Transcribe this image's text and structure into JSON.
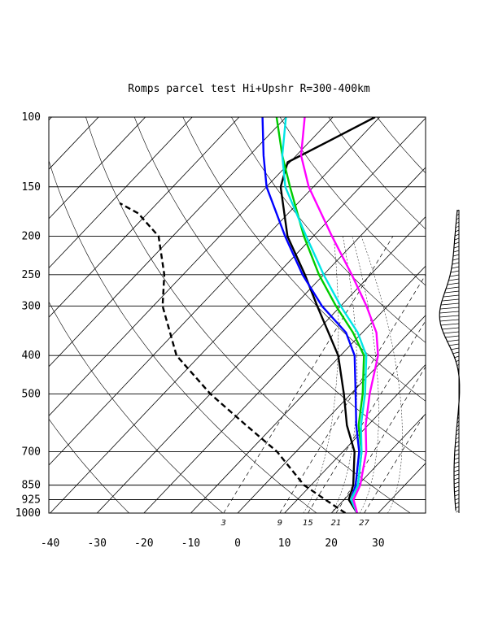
{
  "chart_data": {
    "type": "line",
    "title": "Romps parcel test Hi+Upshr R=300-400km",
    "pressure_ticks": [
      100,
      150,
      200,
      250,
      300,
      400,
      500,
      700,
      850,
      925,
      1000
    ],
    "temperature_ticks": [
      -40,
      -30,
      -20,
      -10,
      0,
      10,
      20,
      30
    ],
    "mixing_ratio_labels": [
      "3",
      "9",
      "15",
      "21",
      "27"
    ],
    "y_axis_scale": "log-pressure (hPa), inverted",
    "x_axis": "temperature (C), skewed",
    "grid": true,
    "series": [
      {
        "color": "#000000",
        "style": "solid",
        "points": [
          [
            1000,
            25.5
          ],
          [
            925,
            21
          ],
          [
            850,
            19
          ],
          [
            700,
            12.5
          ],
          [
            600,
            5.5
          ],
          [
            500,
            -1.5
          ],
          [
            400,
            -10.5
          ],
          [
            300,
            -25
          ],
          [
            250,
            -34
          ],
          [
            200,
            -45.5
          ],
          [
            150,
            -57
          ],
          [
            130,
            -60.5
          ],
          [
            115,
            -56
          ],
          [
            100,
            -51
          ]
        ]
      },
      {
        "color": "#000000",
        "style": "dashed",
        "points": [
          [
            1000,
            23
          ],
          [
            925,
            16
          ],
          [
            850,
            8.5
          ],
          [
            700,
            -4
          ],
          [
            600,
            -16
          ],
          [
            500,
            -30
          ],
          [
            400,
            -45
          ],
          [
            300,
            -58
          ],
          [
            250,
            -64
          ],
          [
            200,
            -73
          ],
          [
            175,
            -82
          ],
          [
            165,
            -88
          ]
        ]
      },
      {
        "color": "#0000ff",
        "style": "solid",
        "points": [
          [
            1000,
            25.5
          ],
          [
            925,
            21.5
          ],
          [
            850,
            19.5
          ],
          [
            700,
            13.5
          ],
          [
            600,
            7.5
          ],
          [
            500,
            1
          ],
          [
            400,
            -7
          ],
          [
            350,
            -13.5
          ],
          [
            300,
            -24
          ],
          [
            250,
            -34.5
          ],
          [
            200,
            -46
          ],
          [
            150,
            -60
          ],
          [
            125,
            -67
          ],
          [
            100,
            -75
          ]
        ]
      },
      {
        "color": "#00cc00",
        "style": "solid",
        "points": [
          [
            1000,
            25.5
          ],
          [
            925,
            21.5
          ],
          [
            850,
            20
          ],
          [
            700,
            14
          ],
          [
            600,
            8
          ],
          [
            500,
            2.5
          ],
          [
            400,
            -5
          ],
          [
            350,
            -12
          ],
          [
            300,
            -21
          ],
          [
            250,
            -31
          ],
          [
            200,
            -42
          ],
          [
            150,
            -55
          ],
          [
            125,
            -63
          ],
          [
            100,
            -72
          ]
        ]
      },
      {
        "color": "#00e5e5",
        "style": "solid",
        "points": [
          [
            1000,
            25.5
          ],
          [
            925,
            21.5
          ],
          [
            850,
            20
          ],
          [
            700,
            14
          ],
          [
            600,
            8.5
          ],
          [
            500,
            3
          ],
          [
            400,
            -4.5
          ],
          [
            350,
            -11
          ],
          [
            300,
            -20
          ],
          [
            250,
            -30
          ],
          [
            200,
            -41.5
          ],
          [
            150,
            -56
          ],
          [
            125,
            -63
          ],
          [
            100,
            -70
          ]
        ]
      },
      {
        "color": "#ff00ff",
        "style": "solid",
        "points": [
          [
            1000,
            25.5
          ],
          [
            925,
            22
          ],
          [
            850,
            20.5
          ],
          [
            700,
            15
          ],
          [
            600,
            9.5
          ],
          [
            500,
            4
          ],
          [
            400,
            -2
          ],
          [
            350,
            -7
          ],
          [
            300,
            -14.5
          ],
          [
            250,
            -24
          ],
          [
            200,
            -36
          ],
          [
            150,
            -51
          ],
          [
            125,
            -59
          ],
          [
            100,
            -66
          ]
        ]
      }
    ],
    "wind_profile_shown": true
  }
}
